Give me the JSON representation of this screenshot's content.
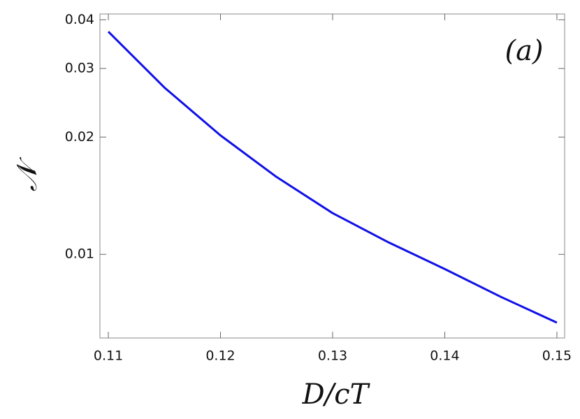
{
  "chart_data": {
    "type": "line",
    "xlabel": "D/cT",
    "ylabel": "𝒩",
    "annotation": "(a)",
    "x": [
      0.11,
      0.115,
      0.12,
      0.125,
      0.13,
      0.135,
      0.14,
      0.145,
      0.15
    ],
    "series": [
      {
        "color": "#1010e8",
        "values": [
          0.0373,
          0.0268,
          0.0202,
          0.0158,
          0.01276,
          0.01073,
          0.00917,
          0.00778,
          0.00668
        ]
      }
    ],
    "xlim": [
      0.10925,
      0.15069
    ],
    "xticks": [
      0.11,
      0.12,
      0.13,
      0.14,
      0.15
    ],
    "ylim": [
      0.0061,
      0.0414
    ],
    "yticks": [
      0.01,
      0.02,
      0.03,
      0.04
    ],
    "ylog": true,
    "grid": false
  }
}
